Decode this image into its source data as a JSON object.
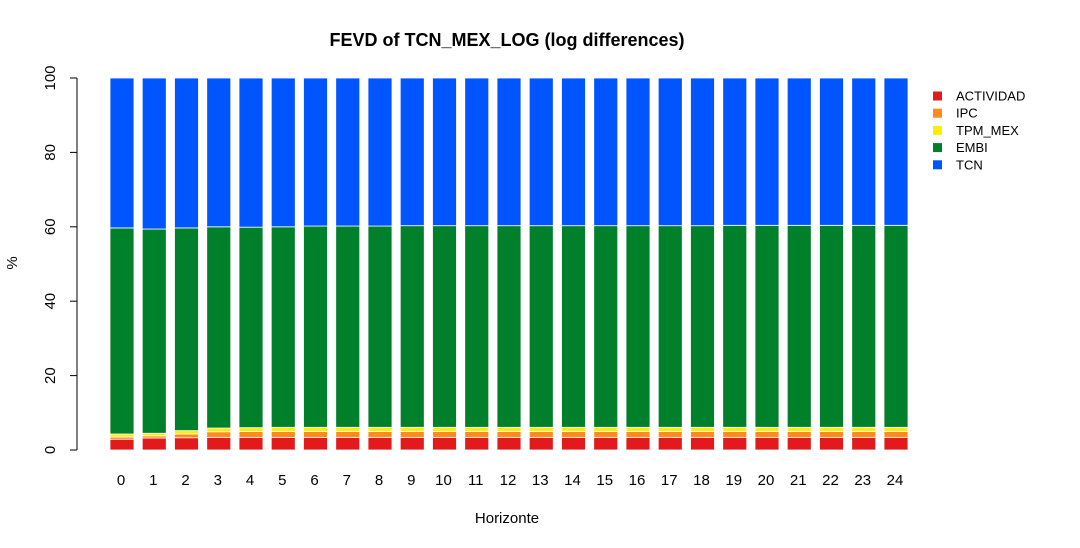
{
  "chart_data": {
    "type": "bar",
    "stacked": true,
    "title": "FEVD of TCN_MEX_LOG (log differences)",
    "xlabel": "Horizonte",
    "ylabel": "%",
    "ylim": [
      0,
      100
    ],
    "yticks": [
      0,
      20,
      40,
      60,
      80,
      100
    ],
    "categories": [
      "0",
      "1",
      "2",
      "3",
      "4",
      "5",
      "6",
      "7",
      "8",
      "9",
      "10",
      "11",
      "12",
      "13",
      "14",
      "15",
      "16",
      "17",
      "18",
      "19",
      "20",
      "21",
      "22",
      "23",
      "24"
    ],
    "series": [
      {
        "name": "ACTIVIDAD",
        "color": "#e31a1c",
        "values": [
          2.9,
          3.2,
          3.3,
          3.4,
          3.4,
          3.4,
          3.4,
          3.4,
          3.4,
          3.4,
          3.4,
          3.4,
          3.4,
          3.4,
          3.4,
          3.4,
          3.4,
          3.4,
          3.4,
          3.4,
          3.4,
          3.4,
          3.4,
          3.4,
          3.4
        ]
      },
      {
        "name": "IPC",
        "color": "#ff8c1a",
        "values": [
          0.6,
          0.6,
          1.0,
          1.5,
          1.6,
          1.6,
          1.6,
          1.6,
          1.6,
          1.6,
          1.6,
          1.6,
          1.6,
          1.6,
          1.6,
          1.6,
          1.6,
          1.6,
          1.6,
          1.6,
          1.6,
          1.6,
          1.6,
          1.6,
          1.6
        ]
      },
      {
        "name": "TPM_MEX",
        "color": "#ffee00",
        "values": [
          0.8,
          0.7,
          0.9,
          1.0,
          1.0,
          1.1,
          1.1,
          1.1,
          1.1,
          1.1,
          1.1,
          1.1,
          1.1,
          1.1,
          1.1,
          1.1,
          1.1,
          1.1,
          1.1,
          1.1,
          1.1,
          1.1,
          1.1,
          1.1,
          1.1
        ]
      },
      {
        "name": "EMBI",
        "color": "#00802b",
        "values": [
          55.4,
          54.9,
          54.5,
          54.1,
          53.9,
          53.9,
          54.1,
          54.1,
          54.1,
          54.2,
          54.2,
          54.2,
          54.2,
          54.2,
          54.2,
          54.2,
          54.2,
          54.2,
          54.2,
          54.3,
          54.3,
          54.3,
          54.3,
          54.3,
          54.3
        ]
      },
      {
        "name": "TCN",
        "color": "#0055ff",
        "values": [
          40.3,
          40.6,
          40.3,
          40.0,
          40.1,
          40.0,
          39.8,
          39.8,
          39.8,
          39.7,
          39.7,
          39.7,
          39.7,
          39.7,
          39.7,
          39.7,
          39.7,
          39.7,
          39.7,
          39.6,
          39.6,
          39.6,
          39.6,
          39.6,
          39.6
        ]
      }
    ],
    "legend_position": "top-right",
    "grid": false
  }
}
